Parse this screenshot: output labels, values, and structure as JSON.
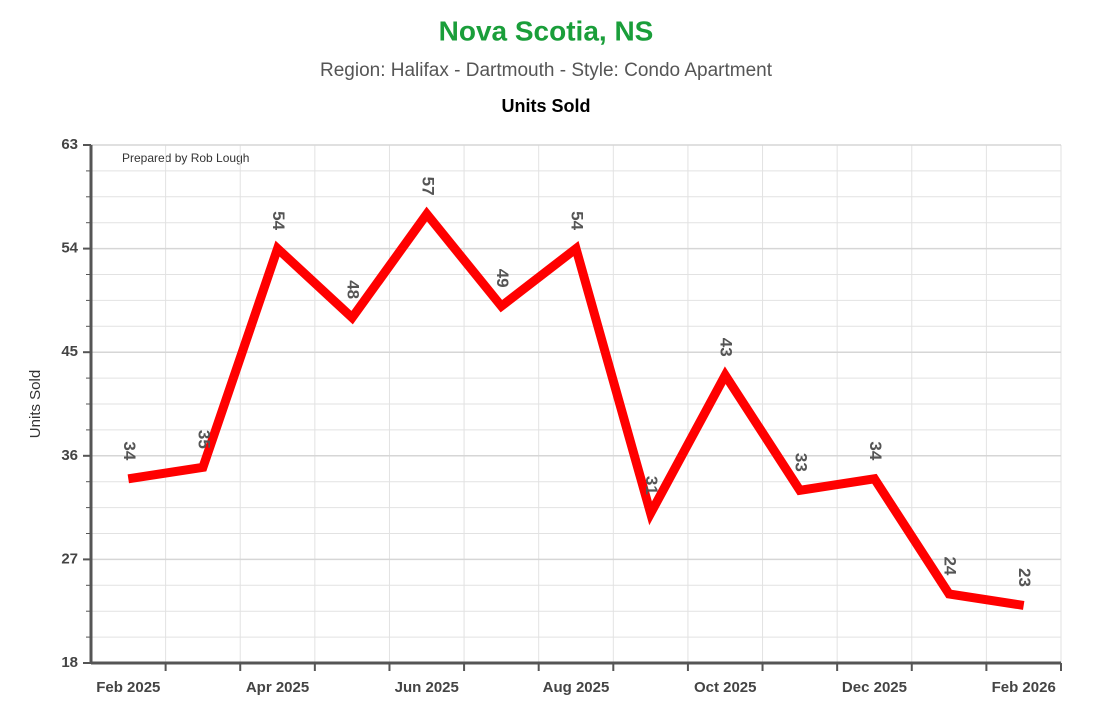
{
  "chart_data": {
    "type": "line",
    "title": "Nova Scotia, NS",
    "subtitle": "Region: Halifax - Dartmouth - Style: Condo Apartment",
    "chart_label": "Units Sold",
    "y_label": "Units Sold",
    "annotation": "Prepared by Rob Lough",
    "categories": [
      "Feb 2025",
      null,
      "Apr 2025",
      null,
      "Jun 2025",
      null,
      "Aug 2025",
      null,
      "Oct 2025",
      null,
      "Dec 2025",
      null,
      "Feb 2026"
    ],
    "series": [
      {
        "name": "Units Sold",
        "color": "#ff0000",
        "values": [
          34,
          35,
          54,
          48,
          57,
          49,
          54,
          31,
          43,
          33,
          34,
          24,
          23
        ]
      }
    ],
    "ylim": [
      18,
      63
    ],
    "yticks": [
      18,
      27,
      36,
      45,
      54,
      63
    ],
    "y_minor_ticks": [
      20.25,
      22.5,
      24.75,
      29.25,
      31.5,
      33.75,
      38.25,
      40.5,
      42.75,
      47.25,
      49.5,
      51.75,
      56.25,
      58.5,
      60.75
    ],
    "grid": true
  }
}
